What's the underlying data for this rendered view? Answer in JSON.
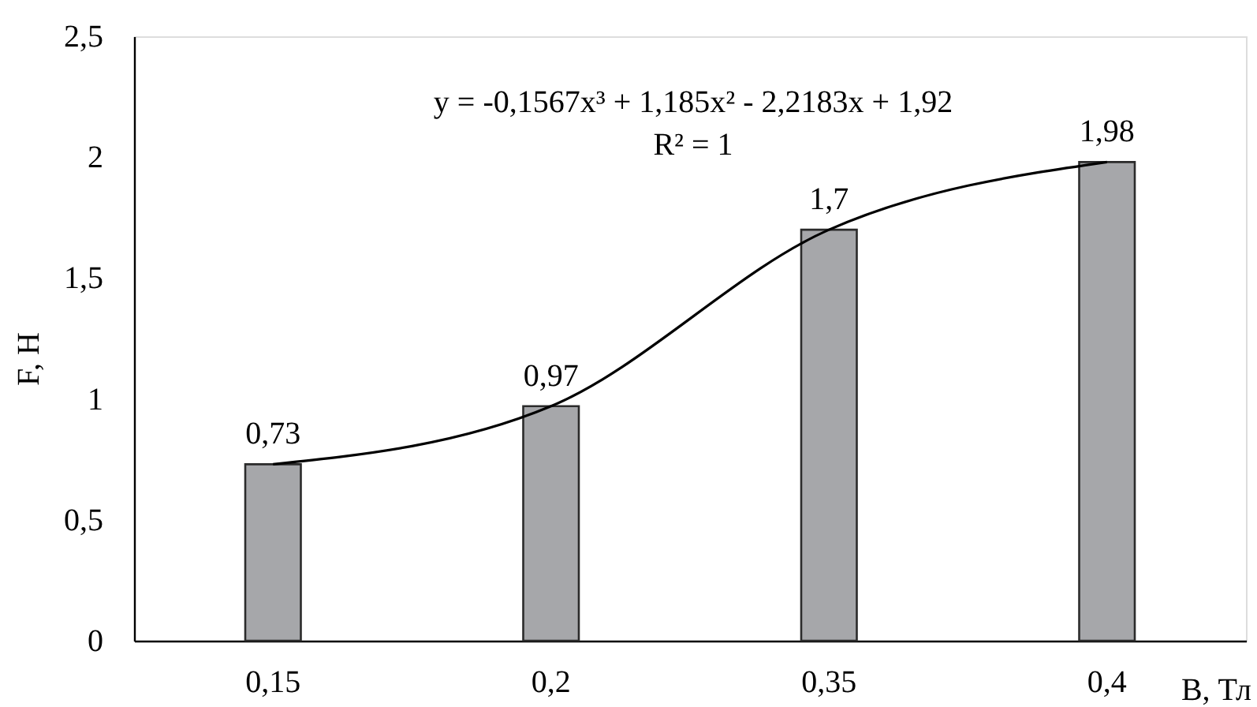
{
  "chart_data": {
    "type": "bar",
    "categories": [
      "0,15",
      "0,2",
      "0,35",
      "0,4"
    ],
    "xlabel": "B, Тл",
    "ylabel": "F, Н",
    "series": [
      {
        "color": "#a6a7aa",
        "values": [
          0.73,
          0.97,
          1.7,
          1.98
        ],
        "value_labels": [
          "0,73",
          "0,97",
          "1,7",
          "1,98"
        ]
      },
      {
        "type": "line",
        "color": "#000000",
        "line_style": "solid",
        "x": [
          "0,15",
          "0,2",
          "0,35",
          "0,4"
        ],
        "values": [
          0.73,
          0.97,
          1.7,
          1.98
        ]
      }
    ],
    "ylim": [
      0,
      2.5
    ],
    "yticks": [
      0,
      {
        "value": 0.5,
        "label": "0,5"
      },
      1,
      {
        "value": 1.5,
        "label": "1,5"
      },
      2,
      {
        "value": 2.5,
        "label": "2,5"
      }
    ],
    "annotations": [
      "y = -0,1567x³ + 1,185x² - 2,2183x + 1,92",
      "R² = 1"
    ],
    "grid": false
  }
}
